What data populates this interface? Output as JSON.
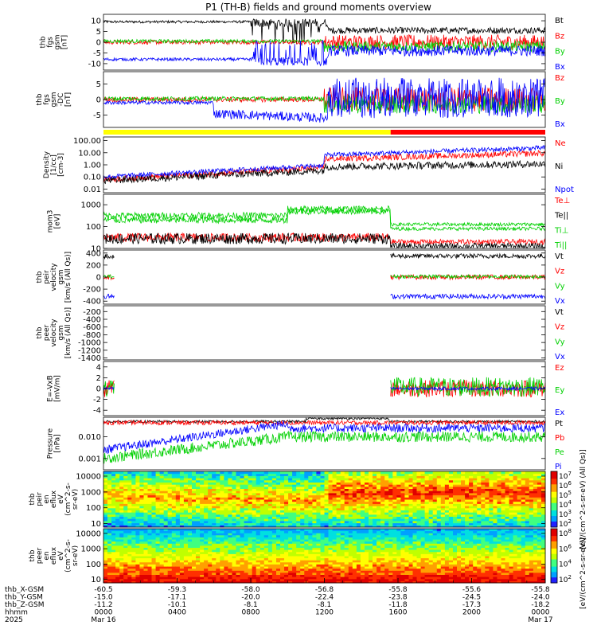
{
  "title": "P1 (TH-B) fields and ground moments overview",
  "colors": {
    "black": "#000000",
    "red": "#ff0000",
    "green": "#00d000",
    "blue": "#0000ff",
    "yellow": "#ffff00"
  },
  "chart_data": [
    {
      "type": "line",
      "id": "fgs_gsm",
      "ylabel": [
        "thb",
        "fgs",
        "gsm",
        "[nT]"
      ],
      "ylim": [
        -13,
        13
      ],
      "ticks": [
        -10,
        -5,
        0,
        5,
        10
      ],
      "series": [
        {
          "name": "Bt",
          "color": "black"
        },
        {
          "name": "Bz",
          "color": "red"
        },
        {
          "name": "By",
          "color": "green"
        },
        {
          "name": "Bx",
          "color": "blue"
        }
      ]
    },
    {
      "type": "line",
      "id": "fgs_gsm_dc",
      "ylabel": [
        "thb",
        "fgs",
        "gsm",
        "-DC",
        "[nT]"
      ],
      "ylim": [
        -9,
        9
      ],
      "ticks": [
        -5,
        0,
        5
      ],
      "series": [
        {
          "name": "Bz",
          "color": "red"
        },
        {
          "name": "By",
          "color": "green"
        },
        {
          "name": "Bx",
          "color": "blue"
        }
      ]
    },
    {
      "type": "line",
      "id": "density",
      "ylabel": [
        "Density",
        "[1/cc]",
        "[cm-3]"
      ],
      "scale": "log",
      "ylim": [
        0.005,
        200
      ],
      "ticks": [
        0.01,
        0.1,
        1.0,
        10.0,
        100.0
      ],
      "tick_labels": [
        "0.01",
        "0.10",
        "1.00",
        "10.00",
        "100.00"
      ],
      "series": [
        {
          "name": "Ne",
          "color": "red"
        },
        {
          "name": "Ni",
          "color": "black"
        },
        {
          "name": "Npot",
          "color": "blue"
        }
      ]
    },
    {
      "type": "line",
      "id": "temperature",
      "ylabel": [
        "mom3",
        "[eV]"
      ],
      "scale": "log",
      "ylim": [
        10,
        3000
      ],
      "ticks": [
        10,
        100,
        1000
      ],
      "tick_labels": [
        "10",
        "100",
        "1000"
      ],
      "series": [
        {
          "name": "Te⊥",
          "color": "red"
        },
        {
          "name": "Te||",
          "color": "black"
        },
        {
          "name": "Ti⊥",
          "color": "green"
        },
        {
          "name": "Ti||",
          "color": "green"
        }
      ]
    },
    {
      "type": "line",
      "id": "peir_velocity",
      "ylabel": [
        "thb",
        "peir",
        "velocity",
        "gsm",
        "[km/s (All Qs)]"
      ],
      "ylim": [
        -450,
        450
      ],
      "ticks": [
        -400,
        -200,
        0,
        200,
        400
      ],
      "series": [
        {
          "name": "Vt",
          "color": "black"
        },
        {
          "name": "Vz",
          "color": "red"
        },
        {
          "name": "Vy",
          "color": "green"
        },
        {
          "name": "Vx",
          "color": "blue"
        }
      ]
    },
    {
      "type": "line",
      "id": "peer_velocity",
      "ylabel": [
        "thb",
        "peer",
        "velocity",
        "gsm",
        "[km/s (All Qs)]"
      ],
      "ylim": [
        -1450,
        -50
      ],
      "ticks": [
        -1400,
        -1200,
        -1000,
        -800,
        -600,
        -400,
        -200
      ],
      "series": [
        {
          "name": "Vt",
          "color": "black"
        },
        {
          "name": "Vz",
          "color": "red"
        },
        {
          "name": "Vy",
          "color": "green"
        },
        {
          "name": "Vx",
          "color": "blue"
        }
      ]
    },
    {
      "type": "line",
      "id": "efield",
      "ylabel": [
        "E=-VxB",
        "[mV/m]"
      ],
      "ylim": [
        -5,
        5
      ],
      "ticks": [
        -4,
        -2,
        0,
        2,
        4
      ],
      "series": [
        {
          "name": "Ez",
          "color": "red"
        },
        {
          "name": "Ey",
          "color": "green"
        },
        {
          "name": "Ex",
          "color": "blue"
        }
      ]
    },
    {
      "type": "line",
      "id": "pressure",
      "ylabel": [
        "Pressure",
        "[nPa]"
      ],
      "scale": "log",
      "ylim": [
        0.0003,
        0.08
      ],
      "ticks": [
        0.001,
        0.01
      ],
      "tick_labels": [
        "0.001",
        "0.010"
      ],
      "series": [
        {
          "name": "Pt",
          "color": "black"
        },
        {
          "name": "Pb",
          "color": "red"
        },
        {
          "name": "Pe",
          "color": "green"
        },
        {
          "name": "Pi",
          "color": "blue"
        }
      ]
    },
    {
      "type": "heatmap",
      "id": "peir_en_eflux",
      "ylabel": [
        "thb",
        "peir",
        "en",
        "eflux",
        "eV",
        "(cm^2-s-",
        "sr-eV)"
      ],
      "scale": "log",
      "ylim": [
        6,
        20000
      ],
      "ticks": [
        10,
        100,
        1000,
        10000
      ],
      "tick_labels": [
        "10",
        "100",
        "1000",
        "10000"
      ],
      "colorbar": {
        "min_exp": 2,
        "max_exp": 7,
        "labels": [
          "10^7",
          "10^6",
          "10^5",
          "10^4",
          "10^3",
          "10^2"
        ],
        "title": "[eV/(cm^2-s-sr-eV) (All Qs)]"
      }
    },
    {
      "type": "heatmap",
      "id": "peer_en_eflux",
      "ylabel": [
        "thb",
        "peer",
        "en",
        "eflux",
        "eV",
        "(cm^2-s-",
        "sr-eV)"
      ],
      "scale": "log",
      "ylim": [
        6,
        20000
      ],
      "ticks": [
        10,
        100,
        1000,
        10000
      ],
      "tick_labels": [
        "10",
        "100",
        "1000",
        "10000"
      ],
      "colorbar": {
        "min_exp": 2,
        "max_exp": 8,
        "labels": [
          "10^8",
          "10^6",
          "10^4",
          "10^2"
        ],
        "title": "[eV/(cm^2-s-sr-eV)]"
      }
    }
  ],
  "x_axis": {
    "start": "2025-03-16 00:00",
    "end": "2025-03-17 00:00",
    "row_labels": [
      "thb_X-GSM",
      "thb_Y-GSM",
      "thb_Z-GSM",
      "hhmm",
      "2025"
    ],
    "columns": [
      {
        "x": "-60.5",
        "y": "-15.0",
        "z": "-11.2",
        "hhmm": "0000",
        "date": "Mar 16"
      },
      {
        "x": "-59.3",
        "y": "-17.1",
        "z": "-10.1",
        "hhmm": "0400",
        "date": ""
      },
      {
        "x": "-58.0",
        "y": "-20.0",
        "z": "-8.1",
        "hhmm": "0800",
        "date": ""
      },
      {
        "x": "-56.8",
        "y": "-22.4",
        "z": "-8.1",
        "hhmm": "1200",
        "date": ""
      },
      {
        "x": "-55.8",
        "y": "-23.8",
        "z": "-11.8",
        "hhmm": "1600",
        "date": ""
      },
      {
        "x": "-55.6",
        "y": "-24.5",
        "z": "-17.3",
        "hhmm": "2000",
        "date": ""
      },
      {
        "x": "-55.8",
        "y": "-24.0",
        "z": "-18.2",
        "hhmm": "0000",
        "date": "Mar 17"
      }
    ]
  },
  "mode_bar": [
    {
      "from_hour": 0,
      "to_hour": 15.6,
      "color": "yellow"
    },
    {
      "from_hour": 15.6,
      "to_hour": 24,
      "color": "red"
    }
  ]
}
